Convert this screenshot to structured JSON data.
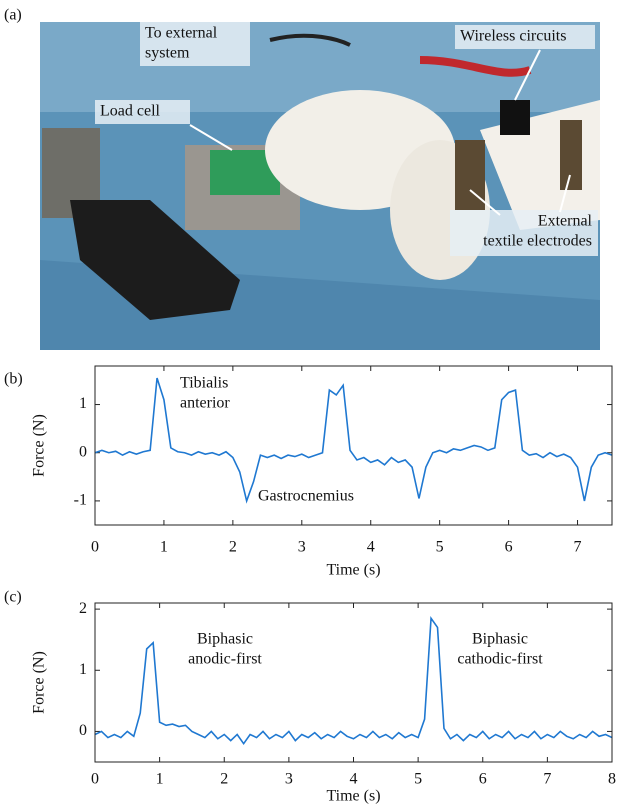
{
  "photo": {
    "panel_label": "(a)",
    "annotations": [
      [
        "To external",
        "system"
      ],
      [
        "Load cell"
      ],
      [
        "Wireless circuits"
      ],
      [
        "External",
        "textile electrodes"
      ]
    ]
  },
  "chart_data": [
    {
      "type": "line",
      "panel_label": "(b)",
      "xlabel": "Time (s)",
      "ylabel": "Force (N)",
      "color": "#1f78d1",
      "xlim": [
        0,
        7.5
      ],
      "ylim": [
        -1.5,
        1.8
      ],
      "xticks": [
        0,
        1,
        2,
        3,
        4,
        5,
        6,
        7
      ],
      "yticks": [
        -1,
        0,
        1
      ],
      "annotations": [
        [
          "Tibialis",
          "anterior"
        ],
        [
          "Gastrocnemius"
        ]
      ],
      "x": [
        0,
        0.1,
        0.2,
        0.3,
        0.4,
        0.5,
        0.6,
        0.7,
        0.8,
        0.9,
        1,
        1.1,
        1.2,
        1.3,
        1.4,
        1.5,
        1.6,
        1.7,
        1.8,
        1.9,
        2,
        2.1,
        2.2,
        2.3,
        2.4,
        2.5,
        2.6,
        2.7,
        2.8,
        2.9,
        3,
        3.1,
        3.2,
        3.3,
        3.4,
        3.5,
        3.6,
        3.7,
        3.8,
        3.9,
        4,
        4.1,
        4.2,
        4.3,
        4.4,
        4.5,
        4.6,
        4.7,
        4.8,
        4.9,
        5,
        5.1,
        5.2,
        5.3,
        5.4,
        5.5,
        5.6,
        5.7,
        5.8,
        5.9,
        6,
        6.1,
        6.2,
        6.3,
        6.4,
        6.5,
        6.6,
        6.7,
        6.8,
        6.9,
        7,
        7.1,
        7.2,
        7.3,
        7.4,
        7.5
      ],
      "values": [
        0,
        0.05,
        0,
        0.03,
        -0.05,
        0.02,
        -0.03,
        0.02,
        0.05,
        1.55,
        1.1,
        0.1,
        0.02,
        0,
        -0.05,
        0.02,
        -0.03,
        0,
        -0.05,
        0.02,
        -0.1,
        -0.4,
        -1.0,
        -0.6,
        -0.05,
        -0.1,
        -0.05,
        -0.12,
        -0.05,
        -0.08,
        -0.03,
        -0.1,
        -0.05,
        0,
        1.3,
        1.2,
        1.4,
        0.05,
        -0.15,
        -0.1,
        -0.2,
        -0.15,
        -0.25,
        -0.1,
        -0.2,
        -0.15,
        -0.3,
        -0.95,
        -0.3,
        0,
        0.05,
        0,
        0.08,
        0.05,
        0.1,
        0.15,
        0.12,
        0.05,
        0.1,
        1.1,
        1.25,
        1.3,
        0.05,
        -0.05,
        -0.02,
        -0.1,
        0,
        -0.08,
        -0.03,
        -0.1,
        -0.3,
        -1.0,
        -0.3,
        -0.05,
        0,
        -0.05
      ]
    },
    {
      "type": "line",
      "panel_label": "(c)",
      "xlabel": "Time (s)",
      "ylabel": "Force (N)",
      "color": "#1f78d1",
      "xlim": [
        0,
        8
      ],
      "ylim": [
        -0.5,
        2.1
      ],
      "xticks": [
        0,
        1,
        2,
        3,
        4,
        5,
        6,
        7,
        8
      ],
      "yticks": [
        0,
        1,
        2
      ],
      "annotations": [
        [
          "Biphasic",
          "anodic-first"
        ],
        [
          "Biphasic",
          "cathodic-first"
        ]
      ],
      "x": [
        0,
        0.1,
        0.2,
        0.3,
        0.4,
        0.5,
        0.6,
        0.7,
        0.8,
        0.9,
        1,
        1.1,
        1.2,
        1.3,
        1.4,
        1.5,
        1.6,
        1.7,
        1.8,
        1.9,
        2,
        2.1,
        2.2,
        2.3,
        2.4,
        2.5,
        2.6,
        2.7,
        2.8,
        2.9,
        3,
        3.1,
        3.2,
        3.3,
        3.4,
        3.5,
        3.6,
        3.7,
        3.8,
        3.9,
        4,
        4.1,
        4.2,
        4.3,
        4.4,
        4.5,
        4.6,
        4.7,
        4.8,
        4.9,
        5,
        5.1,
        5.2,
        5.3,
        5.4,
        5.5,
        5.6,
        5.7,
        5.8,
        5.9,
        6,
        6.1,
        6.2,
        6.3,
        6.4,
        6.5,
        6.6,
        6.7,
        6.8,
        6.9,
        7,
        7.1,
        7.2,
        7.3,
        7.4,
        7.5,
        7.6,
        7.7,
        7.8,
        7.9,
        8
      ],
      "values": [
        -0.05,
        0,
        -0.1,
        -0.05,
        -0.1,
        0,
        -0.08,
        0.3,
        1.35,
        1.45,
        0.15,
        0.1,
        0.12,
        0.08,
        0.1,
        0,
        -0.05,
        -0.1,
        0,
        -0.12,
        -0.05,
        -0.15,
        -0.05,
        -0.2,
        -0.05,
        -0.1,
        0,
        -0.12,
        -0.05,
        -0.1,
        0,
        -0.15,
        -0.05,
        -0.1,
        -0.02,
        -0.12,
        -0.05,
        -0.1,
        0,
        -0.08,
        -0.12,
        -0.05,
        -0.1,
        0,
        -0.1,
        -0.05,
        -0.12,
        -0.02,
        -0.1,
        -0.05,
        -0.1,
        0.2,
        1.85,
        1.7,
        0.05,
        -0.12,
        -0.05,
        -0.15,
        -0.05,
        -0.1,
        0,
        -0.12,
        -0.05,
        -0.1,
        0,
        -0.12,
        -0.05,
        -0.1,
        0,
        -0.12,
        -0.05,
        -0.1,
        0,
        -0.08,
        -0.12,
        -0.05,
        -0.1,
        0,
        -0.08,
        -0.05,
        -0.1
      ]
    }
  ]
}
